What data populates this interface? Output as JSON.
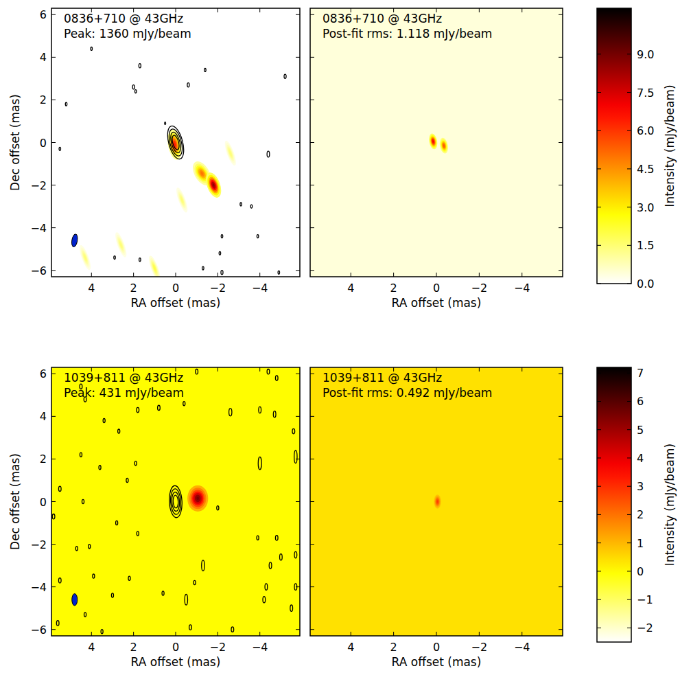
{
  "chart_data": [
    {
      "type": "heatmap",
      "title": "0836+710 @ 43GHz",
      "subtitle": "Peak: 1360 mJy/beam",
      "x_label": "RA offset (mas)",
      "y_label": "Dec offset (mas)",
      "xlim": [
        5.9,
        -5.9
      ],
      "xticks": [
        4,
        2,
        0,
        {
          "value": -2,
          "label": "−2"
        },
        {
          "value": -4,
          "label": "−4"
        }
      ],
      "ylim": [
        -6.3,
        6.3
      ],
      "yticks": [
        {
          "value": -6,
          "label": "−6"
        },
        {
          "value": -4,
          "label": "−4"
        },
        {
          "value": -2,
          "label": "−2"
        },
        0,
        2,
        4,
        6
      ],
      "background": 0,
      "components": [
        {
          "x": 0.05,
          "y": -0.1,
          "peak": 6.5,
          "major": 0.35,
          "minor": 0.15,
          "pa": 10
        },
        {
          "x": -1.25,
          "y": -1.45,
          "peak": 5,
          "major": 0.3,
          "minor": 0.17,
          "pa": 30
        },
        {
          "x": -1.8,
          "y": -2.0,
          "peak": 8.5,
          "major": 0.3,
          "minor": 0.15,
          "pa": 20
        },
        {
          "x": 1.0,
          "y": -5.9,
          "peak": 2,
          "major": 0.3,
          "minor": 0.08,
          "pa": 20
        },
        {
          "x": 2.6,
          "y": -4.8,
          "peak": 1.5,
          "major": 0.3,
          "minor": 0.08,
          "pa": 20
        },
        {
          "x": -0.3,
          "y": -2.7,
          "peak": 1.5,
          "major": 0.3,
          "minor": 0.08,
          "pa": 20
        },
        {
          "x": 4.3,
          "y": -5.4,
          "peak": 1.5,
          "major": 0.3,
          "minor": 0.08,
          "pa": 20
        },
        {
          "x": -2.6,
          "y": -0.5,
          "peak": 1.5,
          "major": 0.3,
          "minor": 0.08,
          "pa": 20
        }
      ],
      "contours": [
        {
          "x": 0,
          "y": 0,
          "major": 0.8,
          "minor": 0.33,
          "pa": 15
        },
        {
          "x": 0,
          "y": 0,
          "major": 0.65,
          "minor": 0.27,
          "pa": 15
        },
        {
          "x": 0,
          "y": 0,
          "major": 0.5,
          "minor": 0.2,
          "pa": 15
        },
        {
          "x": 0,
          "y": 0,
          "major": 0.35,
          "minor": 0.14,
          "pa": 15
        },
        {
          "x": 4.0,
          "y": 4.4,
          "major": 0.08,
          "minor": 0.04,
          "pa": 0
        },
        {
          "x": 1.7,
          "y": 3.6,
          "major": 0.1,
          "minor": 0.05,
          "pa": 0
        },
        {
          "x": 2.0,
          "y": 2.6,
          "major": 0.1,
          "minor": 0.05,
          "pa": 0
        },
        {
          "x": 1.9,
          "y": 2.4,
          "major": 0.08,
          "minor": 0.04,
          "pa": 0
        },
        {
          "x": -0.6,
          "y": 2.7,
          "major": 0.1,
          "minor": 0.05,
          "pa": 0
        },
        {
          "x": -1.4,
          "y": 3.4,
          "major": 0.08,
          "minor": 0.04,
          "pa": 0
        },
        {
          "x": -5.2,
          "y": 3.1,
          "major": 0.1,
          "minor": 0.05,
          "pa": 0
        },
        {
          "x": 5.2,
          "y": 1.8,
          "major": 0.08,
          "minor": 0.04,
          "pa": 0
        },
        {
          "x": 5.5,
          "y": -0.3,
          "major": 0.08,
          "minor": 0.04,
          "pa": 0
        },
        {
          "x": -4.4,
          "y": -0.55,
          "major": 0.14,
          "minor": 0.06,
          "pa": 0
        },
        {
          "x": -3.1,
          "y": -2.9,
          "major": 0.08,
          "minor": 0.04,
          "pa": 0
        },
        {
          "x": -3.6,
          "y": -3.0,
          "major": 0.08,
          "minor": 0.04,
          "pa": 0
        },
        {
          "x": -3.9,
          "y": -4.4,
          "major": 0.08,
          "minor": 0.04,
          "pa": 0
        },
        {
          "x": -2.2,
          "y": -4.4,
          "major": 0.08,
          "minor": 0.04,
          "pa": 0
        },
        {
          "x": -2.1,
          "y": -5.2,
          "major": 0.08,
          "minor": 0.04,
          "pa": 0
        },
        {
          "x": 2.9,
          "y": -5.4,
          "major": 0.08,
          "minor": 0.04,
          "pa": 0
        },
        {
          "x": 1.7,
          "y": -5.5,
          "major": 0.08,
          "minor": 0.04,
          "pa": 0
        },
        {
          "x": -1.3,
          "y": -5.9,
          "major": 0.08,
          "minor": 0.04,
          "pa": 0
        },
        {
          "x": -2.2,
          "y": -6.1,
          "major": 0.1,
          "minor": 0.05,
          "pa": 0
        },
        {
          "x": -4.9,
          "y": -6.1,
          "major": 0.08,
          "minor": 0.04,
          "pa": 0
        },
        {
          "x": 0.5,
          "y": 0.9,
          "major": 0.06,
          "minor": 0.03,
          "pa": 0
        }
      ],
      "beam": {
        "x": 4.8,
        "y": -4.6,
        "major": 0.3,
        "minor": 0.13,
        "pa": -10
      }
    },
    {
      "type": "heatmap",
      "title": "0836+710 @ 43GHz",
      "subtitle": "Post-fit rms: 1.118 mJy/beam",
      "x_label": "RA offset (mas)",
      "tick_labels": "x",
      "xlim": [
        5.9,
        -5.9
      ],
      "xticks": [
        4,
        2,
        0,
        {
          "value": -2,
          "label": "−2"
        },
        {
          "value": -4,
          "label": "−4"
        }
      ],
      "ylim": [
        -6.3,
        6.3
      ],
      "yticks": [
        -6,
        -4,
        -2,
        0,
        2,
        4,
        6
      ],
      "background": 0.4,
      "components": [
        {
          "x": 0.15,
          "y": 0.05,
          "peak": 7,
          "major": 0.18,
          "minor": 0.09,
          "pa": 10
        },
        {
          "x": -0.35,
          "y": -0.15,
          "peak": 5.5,
          "major": 0.18,
          "minor": 0.09,
          "pa": 10
        }
      ],
      "colorbar": {
        "label": "Intensity (mJy/beam)",
        "lim": [
          0,
          10.8
        ],
        "ticks": [
          {
            "value": 0,
            "label": "0.0"
          },
          {
            "value": 1.5,
            "label": "1.5"
          },
          {
            "value": 3,
            "label": "3.0"
          },
          {
            "value": 4.5,
            "label": "4.5"
          },
          {
            "value": 6,
            "label": "6.0"
          },
          {
            "value": 7.5,
            "label": "7.5"
          },
          {
            "value": 9,
            "label": "9.0"
          }
        ]
      }
    },
    {
      "type": "heatmap",
      "title": "1039+811 @ 43GHz",
      "subtitle": "Peak: 431 mJy/beam",
      "x_label": "RA offset (mas)",
      "y_label": "Dec offset (mas)",
      "xlim": [
        5.9,
        -5.9
      ],
      "xticks": [
        4,
        2,
        0,
        {
          "value": -2,
          "label": "−2"
        },
        {
          "value": -4,
          "label": "−4"
        }
      ],
      "ylim": [
        -6.3,
        6.3
      ],
      "yticks": [
        {
          "value": -6,
          "label": "−6"
        },
        {
          "value": -4,
          "label": "−4"
        },
        {
          "value": -2,
          "label": "−2"
        },
        0,
        2,
        4,
        6
      ],
      "background": 0,
      "components": [
        {
          "x": -1.05,
          "y": 0.15,
          "peak": 5.5,
          "major": 0.3,
          "minor": 0.24,
          "pa": 0
        }
      ],
      "contours": [
        {
          "x": 0,
          "y": 0,
          "major": 0.75,
          "minor": 0.3,
          "pa": 3
        },
        {
          "x": 0,
          "y": 0,
          "major": 0.6,
          "minor": 0.24,
          "pa": 3
        },
        {
          "x": 0,
          "y": 0,
          "major": 0.45,
          "minor": 0.18,
          "pa": 3
        },
        {
          "x": 0,
          "y": 0,
          "major": 0.3,
          "minor": 0.12,
          "pa": 3
        },
        {
          "x": -1.0,
          "y": 6.1,
          "major": 0.12,
          "minor": 0.06,
          "pa": 0
        },
        {
          "x": -4.4,
          "y": 6.1,
          "major": 0.12,
          "minor": 0.06,
          "pa": 0
        },
        {
          "x": -4.8,
          "y": 5.8,
          "major": 0.12,
          "minor": 0.06,
          "pa": 0
        },
        {
          "x": 4.5,
          "y": 5.4,
          "major": 0.12,
          "minor": 0.06,
          "pa": 0
        },
        {
          "x": 4.3,
          "y": 4.8,
          "major": 0.12,
          "minor": 0.06,
          "pa": 0
        },
        {
          "x": 1.8,
          "y": 4.3,
          "major": 0.12,
          "minor": 0.06,
          "pa": 0
        },
        {
          "x": 3.4,
          "y": 3.8,
          "major": 0.1,
          "minor": 0.05,
          "pa": 0
        },
        {
          "x": 2.7,
          "y": 3.3,
          "major": 0.1,
          "minor": 0.05,
          "pa": 0
        },
        {
          "x": 0.8,
          "y": 4.4,
          "major": 0.12,
          "minor": 0.06,
          "pa": 0
        },
        {
          "x": -0.4,
          "y": 4.6,
          "major": 0.1,
          "minor": 0.05,
          "pa": 0
        },
        {
          "x": -2.6,
          "y": 4.2,
          "major": 0.18,
          "minor": 0.07,
          "pa": 0
        },
        {
          "x": -4.0,
          "y": 4.3,
          "major": 0.15,
          "minor": 0.06,
          "pa": 0
        },
        {
          "x": -4.7,
          "y": 4.1,
          "major": 0.15,
          "minor": 0.06,
          "pa": 0
        },
        {
          "x": -5.6,
          "y": 3.3,
          "major": 0.12,
          "minor": 0.06,
          "pa": 0
        },
        {
          "x": -5.7,
          "y": 2.1,
          "major": 0.3,
          "minor": 0.07,
          "pa": 0
        },
        {
          "x": -4.0,
          "y": 1.8,
          "major": 0.3,
          "minor": 0.08,
          "pa": 0
        },
        {
          "x": 3.6,
          "y": 1.6,
          "major": 0.1,
          "minor": 0.05,
          "pa": 0
        },
        {
          "x": 4.5,
          "y": 2.2,
          "major": 0.1,
          "minor": 0.05,
          "pa": 0
        },
        {
          "x": 1.9,
          "y": 1.8,
          "major": 0.1,
          "minor": 0.05,
          "pa": 0
        },
        {
          "x": 2.3,
          "y": 1.0,
          "major": 0.1,
          "minor": 0.05,
          "pa": 0
        },
        {
          "x": 5.5,
          "y": 0.6,
          "major": 0.12,
          "minor": 0.06,
          "pa": 0
        },
        {
          "x": 4.4,
          "y": 0.0,
          "major": 0.1,
          "minor": 0.05,
          "pa": 0
        },
        {
          "x": -2.0,
          "y": -0.3,
          "major": 0.1,
          "minor": 0.05,
          "pa": 0
        },
        {
          "x": 5.8,
          "y": -0.7,
          "major": 0.12,
          "minor": 0.06,
          "pa": 0
        },
        {
          "x": 2.8,
          "y": -1.0,
          "major": 0.1,
          "minor": 0.05,
          "pa": 0
        },
        {
          "x": 1.8,
          "y": -1.5,
          "major": 0.1,
          "minor": 0.05,
          "pa": 0
        },
        {
          "x": 4.7,
          "y": -2.2,
          "major": 0.1,
          "minor": 0.05,
          "pa": 0
        },
        {
          "x": -3.9,
          "y": -1.7,
          "major": 0.1,
          "minor": 0.05,
          "pa": 0
        },
        {
          "x": -4.8,
          "y": -1.7,
          "major": 0.12,
          "minor": 0.06,
          "pa": 0
        },
        {
          "x": -1.3,
          "y": -3.0,
          "major": 0.25,
          "minor": 0.07,
          "pa": 0
        },
        {
          "x": -4.5,
          "y": -3.0,
          "major": 0.15,
          "minor": 0.06,
          "pa": 0
        },
        {
          "x": -5.7,
          "y": -2.5,
          "major": 0.15,
          "minor": 0.06,
          "pa": 0
        },
        {
          "x": -5.0,
          "y": -2.6,
          "major": 0.15,
          "minor": 0.06,
          "pa": 0
        },
        {
          "x": 4.1,
          "y": -2.1,
          "major": 0.1,
          "minor": 0.05,
          "pa": 0
        },
        {
          "x": 5.5,
          "y": -3.7,
          "major": 0.12,
          "minor": 0.06,
          "pa": 0
        },
        {
          "x": -0.9,
          "y": -3.8,
          "major": 0.1,
          "minor": 0.05,
          "pa": 0
        },
        {
          "x": -4.2,
          "y": -4.6,
          "major": 0.15,
          "minor": 0.06,
          "pa": 0
        },
        {
          "x": -4.3,
          "y": -4.0,
          "major": 0.15,
          "minor": 0.06,
          "pa": 0
        },
        {
          "x": 0.6,
          "y": -4.3,
          "major": 0.1,
          "minor": 0.05,
          "pa": 0
        },
        {
          "x": -0.5,
          "y": -4.6,
          "major": 0.25,
          "minor": 0.07,
          "pa": 0
        },
        {
          "x": -5.7,
          "y": -4.0,
          "major": 0.15,
          "minor": 0.06,
          "pa": 0
        },
        {
          "x": -5.5,
          "y": -5.0,
          "major": 0.15,
          "minor": 0.06,
          "pa": 0
        },
        {
          "x": 4.3,
          "y": -5.3,
          "major": 0.1,
          "minor": 0.05,
          "pa": 0
        },
        {
          "x": 3.9,
          "y": -3.5,
          "major": 0.1,
          "minor": 0.05,
          "pa": 0
        },
        {
          "x": 3.0,
          "y": -4.4,
          "major": 0.1,
          "minor": 0.05,
          "pa": 0
        },
        {
          "x": 2.2,
          "y": -3.6,
          "major": 0.1,
          "minor": 0.05,
          "pa": 0
        },
        {
          "x": -0.7,
          "y": -5.9,
          "major": 0.12,
          "minor": 0.06,
          "pa": 0
        },
        {
          "x": 3.5,
          "y": -6.1,
          "major": 0.1,
          "minor": 0.05,
          "pa": 0
        },
        {
          "x": 5.6,
          "y": -5.7,
          "major": 0.12,
          "minor": 0.06,
          "pa": 0
        },
        {
          "x": -2.7,
          "y": -6.0,
          "major": 0.12,
          "minor": 0.06,
          "pa": 0
        }
      ],
      "beam": {
        "x": 4.8,
        "y": -4.6,
        "major": 0.28,
        "minor": 0.13,
        "pa": 0
      }
    },
    {
      "type": "heatmap",
      "title": "1039+811 @ 43GHz",
      "subtitle": "Post-fit rms: 0.492 mJy/beam",
      "x_label": "RA offset (mas)",
      "tick_labels": "x",
      "xlim": [
        5.9,
        -5.9
      ],
      "xticks": [
        4,
        2,
        0,
        {
          "value": -2,
          "label": "−2"
        },
        {
          "value": -4,
          "label": "−4"
        }
      ],
      "ylim": [
        -6.3,
        6.3
      ],
      "yticks": [
        -6,
        -4,
        -2,
        0,
        2,
        4,
        6
      ],
      "background": 0.4,
      "components": [
        {
          "x": -0.05,
          "y": 0.0,
          "peak": 2.8,
          "major": 0.16,
          "minor": 0.08,
          "pa": 0
        }
      ],
      "colorbar": {
        "label": "Intensity (mJy/beam)",
        "lim": [
          -2.5,
          7.2
        ],
        "ticks": [
          {
            "value": -2,
            "label": "−2"
          },
          {
            "value": -1,
            "label": "−1"
          },
          0,
          1,
          2,
          3,
          4,
          5,
          6,
          7
        ]
      }
    }
  ]
}
